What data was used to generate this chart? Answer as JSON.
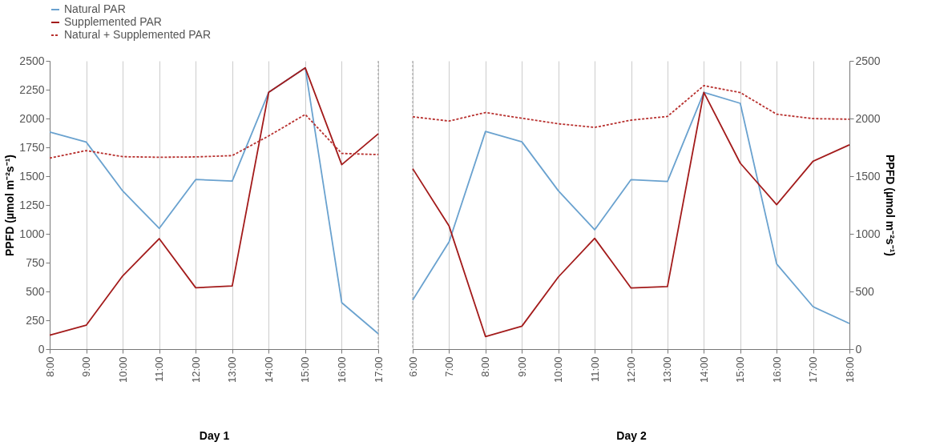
{
  "chart_data": [
    {
      "type": "line",
      "xlabel": "Day 1",
      "ylabel": "PPFD (µmol m⁻²s⁻¹)",
      "categories": [
        "8:00",
        "9:00",
        "10:00",
        "11:00",
        "12:00",
        "13:00",
        "14:00",
        "15:00",
        "16:00",
        "17:00"
      ],
      "series": [
        {
          "name": "Natural PAR",
          "color": "#6aa2cf",
          "values": [
            1883,
            1796,
            1372,
            1047,
            1471,
            1457,
            2228,
            2440,
            403,
            134
          ]
        },
        {
          "name": "Supplemented PAR",
          "color": "#a31b1b",
          "values": [
            120,
            207,
            635,
            958,
            532,
            548,
            2228,
            2440,
            1600,
            1867
          ]
        },
        {
          "name": "Natural + Supplemented PAR",
          "color": "#b8312f",
          "line_style": "dashed",
          "values": [
            1657,
            1722,
            1669,
            1664,
            1667,
            1678,
            1849,
            2035,
            1697,
            1687
          ]
        }
      ],
      "ylim": [
        0,
        2500
      ],
      "yticks": [
        0,
        250,
        500,
        750,
        1000,
        1250,
        1500,
        1750,
        2000,
        2250,
        2500
      ],
      "grid": "x",
      "legend": "top",
      "ref_lines": [
        {
          "axis": "x",
          "value": "17:00",
          "color": "#999999",
          "line_style": "dashed"
        }
      ]
    },
    {
      "type": "line",
      "xlabel": "Day 2",
      "y2label": "PPFD (µmol m⁻²s⁻¹)",
      "categories": [
        "6:00",
        "7:00",
        "8:00",
        "9:00",
        "10:00",
        "11:00",
        "12:00",
        "13:00",
        "14:00",
        "15:00",
        "16:00",
        "17:00",
        "18:00"
      ],
      "series": [
        {
          "name": "Natural PAR",
          "color": "#6aa2cf",
          "axis": "y2",
          "values": [
            426,
            930,
            1888,
            1798,
            1374,
            1035,
            1470,
            1454,
            2227,
            2132,
            739,
            368,
            222
          ]
        },
        {
          "name": "Supplemented PAR",
          "color": "#a31b1b",
          "axis": "y2",
          "values": [
            1565,
            1067,
            109,
            199,
            625,
            961,
            530,
            543,
            2227,
            1613,
            1253,
            1629,
            1772
          ]
        },
        {
          "name": "Natural + Supplemented PAR",
          "color": "#b8312f",
          "axis": "y2",
          "line_style": "dashed",
          "values": [
            2015,
            1978,
            2052,
            2002,
            1954,
            1923,
            1986,
            2018,
            2285,
            2225,
            2037,
            1999,
            1994
          ]
        }
      ],
      "y2lim": [
        0,
        2500
      ],
      "y2ticks": [
        0,
        500,
        1000,
        1500,
        2000,
        2500
      ],
      "grid": "x",
      "legend": "top",
      "ref_lines": [
        {
          "axis": "x",
          "value": "6:00",
          "color": "#999999",
          "line_style": "dashed"
        }
      ]
    }
  ]
}
